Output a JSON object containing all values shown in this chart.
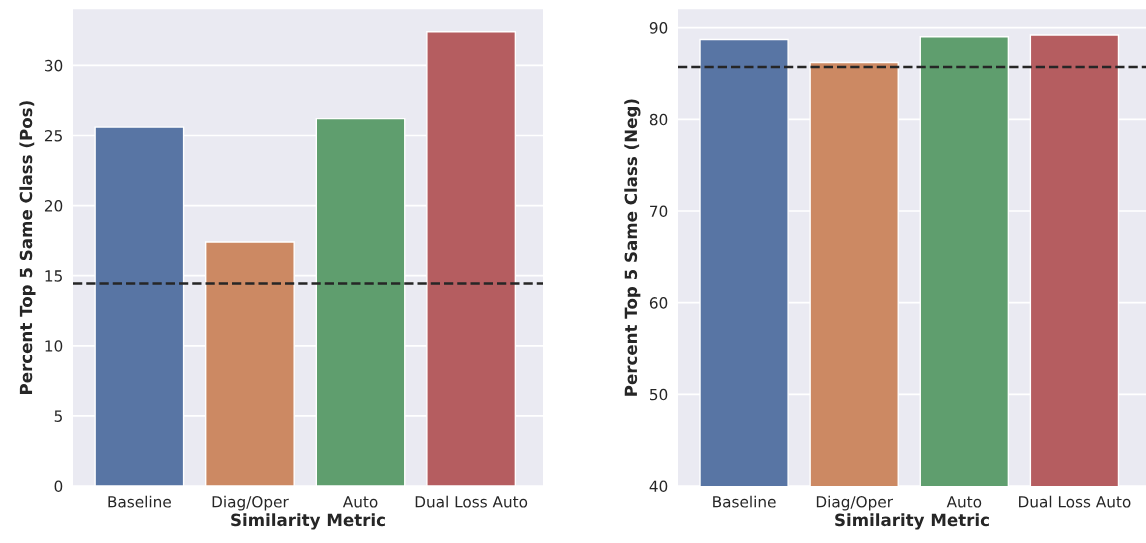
{
  "chart_data": [
    {
      "type": "bar",
      "xlabel": "Similarity Metric",
      "ylabel": "Percent Top 5 Same Class (Pos)",
      "categories": [
        "Baseline",
        "Diag/Oper",
        "Auto",
        "Dual Loss Auto"
      ],
      "values": [
        25.6,
        17.4,
        26.2,
        32.4
      ],
      "colors": [
        "#5875a4",
        "#cc8963",
        "#5f9e6e",
        "#b55d60"
      ],
      "ylim": [
        0,
        34
      ],
      "yticks": [
        0,
        5,
        10,
        15,
        20,
        25,
        30
      ],
      "grid": "y",
      "ref_lines": [
        {
          "axis": "y",
          "value": 14.45,
          "color": "#262626",
          "line_style": "dashed"
        }
      ]
    },
    {
      "type": "bar",
      "xlabel": "Similarity Metric",
      "ylabel": "Percent Top 5 Same Class (Neg)",
      "categories": [
        "Baseline",
        "Diag/Oper",
        "Auto",
        "Dual Loss Auto"
      ],
      "values": [
        88.7,
        86.2,
        89.0,
        89.2
      ],
      "colors": [
        "#5875a4",
        "#cc8963",
        "#5f9e6e",
        "#b55d60"
      ],
      "ylim": [
        40,
        92
      ],
      "yticks": [
        40,
        50,
        60,
        70,
        80,
        90
      ],
      "grid": "y",
      "ref_lines": [
        {
          "axis": "y",
          "value": 85.7,
          "color": "#262626",
          "line_style": "dashed"
        }
      ]
    }
  ]
}
